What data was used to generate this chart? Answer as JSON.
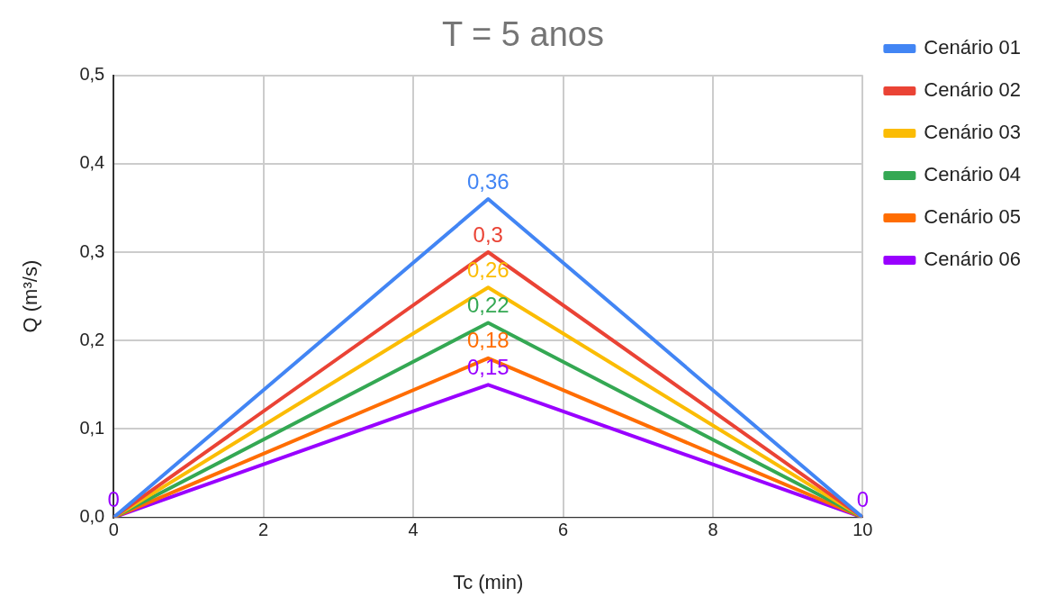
{
  "chart_data": {
    "type": "line",
    "title": "T = 5 anos",
    "xlabel": "Tc (min)",
    "ylabel": "Q (m³/s)",
    "x": [
      0,
      5,
      10
    ],
    "xlim": [
      0,
      10
    ],
    "xticks": [
      0,
      2,
      4,
      6,
      8,
      10
    ],
    "ylim": [
      0,
      0.5
    ],
    "yticks": [
      {
        "value": 0,
        "label": "0,0"
      },
      {
        "value": 0.1,
        "label": "0,1"
      },
      {
        "value": 0.2,
        "label": "0,2"
      },
      {
        "value": 0.3,
        "label": "0,3"
      },
      {
        "value": 0.4,
        "label": "0,4"
      },
      {
        "value": 0.5,
        "label": "0,5"
      }
    ],
    "grid": true,
    "legend": "right",
    "marker": "none",
    "line_style": "solid",
    "series": [
      {
        "name": "Cenário 01",
        "color": "#4285f4",
        "values": [
          0,
          0.36,
          0
        ],
        "value_labels": [
          null,
          "0,36",
          null
        ]
      },
      {
        "name": "Cenário 02",
        "color": "#ea4335",
        "values": [
          0,
          0.3,
          0
        ],
        "value_labels": [
          null,
          "0,3",
          null
        ]
      },
      {
        "name": "Cenário 03",
        "color": "#fbbc04",
        "values": [
          0,
          0.26,
          0
        ],
        "value_labels": [
          null,
          "0,26",
          null
        ]
      },
      {
        "name": "Cenário 04",
        "color": "#34a853",
        "values": [
          0,
          0.22,
          0
        ],
        "value_labels": [
          null,
          "0,22",
          null
        ]
      },
      {
        "name": "Cenário 05",
        "color": "#ff6d01",
        "values": [
          0,
          0.18,
          0
        ],
        "value_labels": [
          null,
          "0,18",
          null
        ]
      },
      {
        "name": "Cenário 06",
        "color": "#9900ff",
        "values": [
          0,
          0.15,
          0
        ],
        "value_labels": [
          "0",
          "0,15",
          "0"
        ]
      }
    ]
  }
}
